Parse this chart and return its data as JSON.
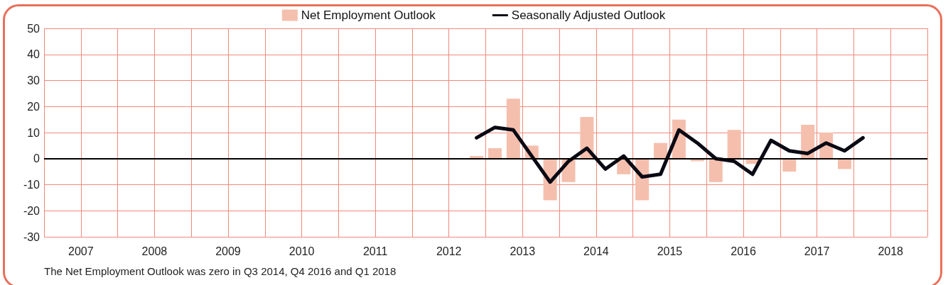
{
  "chart_data": {
    "type": "bar",
    "x": [
      2012.875,
      2013.125,
      2013.375,
      2013.625,
      2013.875,
      2014.125,
      2014.375,
      2014.625,
      2014.875,
      2015.125,
      2015.375,
      2015.625,
      2015.875,
      2016.125,
      2016.375,
      2016.625,
      2016.875,
      2017.125,
      2017.375,
      2017.625,
      2017.875,
      2018.125
    ],
    "series": [
      {
        "name": "Net Employment Outlook",
        "color": "#f5bfad",
        "values": [
          1,
          4,
          23,
          5,
          -16,
          -9,
          16,
          0,
          -6,
          -16,
          6,
          15,
          -1,
          -9,
          11,
          -2,
          0,
          -5,
          13,
          10,
          -4,
          0
        ]
      },
      {
        "name": "Seasonally Adjusted Outlook",
        "type": "line",
        "color": "#0a0a14",
        "values": [
          8,
          12,
          11,
          1,
          -9,
          -1,
          4,
          -4,
          1,
          -7,
          -6,
          11,
          6,
          0,
          -1,
          -6,
          7,
          3,
          2,
          6,
          3,
          8
        ]
      }
    ],
    "xlim": [
      2007,
      2019
    ],
    "xticks": [
      {
        "value": 2007,
        "label": null
      },
      {
        "value": 2007.5,
        "label": "2007"
      },
      {
        "value": 2008,
        "label": null
      },
      {
        "value": 2008.5,
        "label": "2008"
      },
      {
        "value": 2009,
        "label": null
      },
      {
        "value": 2009.5,
        "label": "2009"
      },
      {
        "value": 2010,
        "label": null
      },
      {
        "value": 2010.5,
        "label": "2010"
      },
      {
        "value": 2011,
        "label": null
      },
      {
        "value": 2011.5,
        "label": "2011"
      },
      {
        "value": 2012,
        "label": null
      },
      {
        "value": 2012.5,
        "label": "2012"
      },
      {
        "value": 2013,
        "label": null
      },
      {
        "value": 2013.5,
        "label": "2013"
      },
      {
        "value": 2014,
        "label": null
      },
      {
        "value": 2014.5,
        "label": "2014"
      },
      {
        "value": 2015,
        "label": null
      },
      {
        "value": 2015.5,
        "label": "2015"
      },
      {
        "value": 2016,
        "label": null
      },
      {
        "value": 2016.5,
        "label": "2016"
      },
      {
        "value": 2017,
        "label": null
      },
      {
        "value": 2017.5,
        "label": "2017"
      },
      {
        "value": 2018,
        "label": null
      },
      {
        "value": 2018.5,
        "label": "2018"
      },
      {
        "value": 2019,
        "label": null
      }
    ],
    "ylim": [
      -30,
      50
    ],
    "yticks": [
      -30,
      -20,
      -10,
      0,
      10,
      20,
      30,
      40,
      50
    ],
    "ref_lines": [
      {
        "axis": "y",
        "value": 0,
        "color": "#000000"
      }
    ],
    "annotations": [
      "The Net Employment Outlook was zero in Q3 2014, Q4 2016 and Q1 2018"
    ],
    "grid": true,
    "legend": "top",
    "marker": "none",
    "line_style": "solid"
  }
}
